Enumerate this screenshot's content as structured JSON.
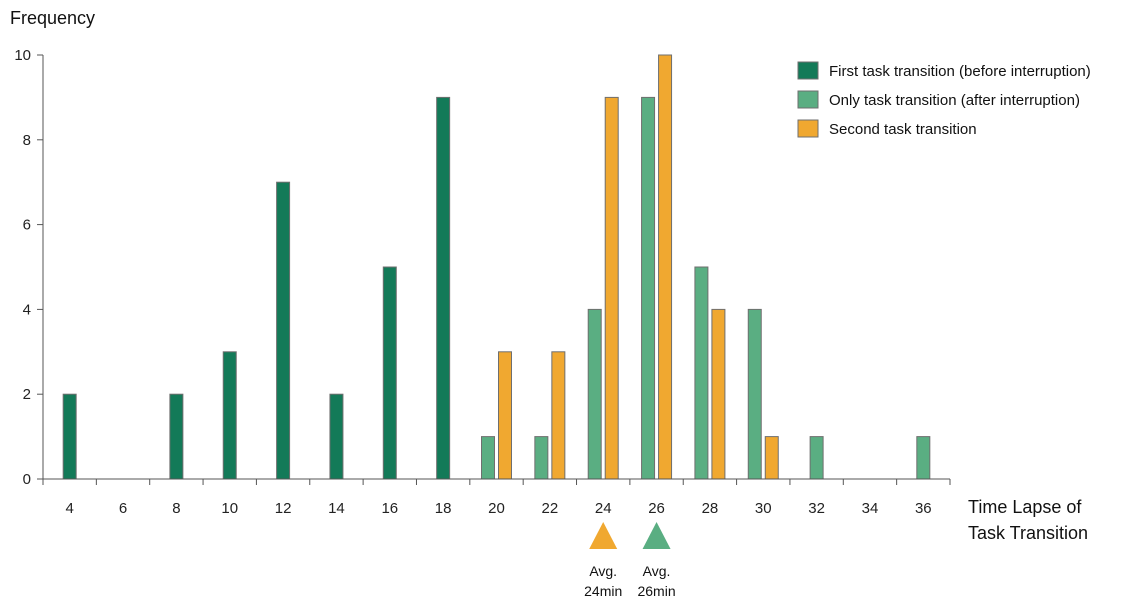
{
  "chart_data": {
    "type": "bar",
    "xlabel": [
      "Time Lapse of",
      "Task Transition"
    ],
    "ylabel": "Frequency",
    "ylim": [
      0,
      10
    ],
    "yticks": [
      0,
      2,
      4,
      6,
      8,
      10
    ],
    "categories": [
      "4",
      "6",
      "8",
      "10",
      "12",
      "14",
      "16",
      "18",
      "20",
      "22",
      "24",
      "26",
      "28",
      "30",
      "32",
      "34",
      "36"
    ],
    "grid": false,
    "legend_position": "top-right",
    "series": [
      {
        "name": "First task transition (before interruption)",
        "color": "#137a58",
        "values": [
          2,
          0,
          2,
          3,
          7,
          2,
          5,
          9,
          0,
          0,
          0,
          0,
          0,
          0,
          0,
          0,
          0
        ]
      },
      {
        "name": "Only task transition (after interruption)",
        "color": "#5aae82",
        "values": [
          0,
          0,
          0,
          0,
          0,
          0,
          0,
          0,
          1,
          1,
          4,
          9,
          5,
          4,
          1,
          0,
          1
        ]
      },
      {
        "name": "Second task transition",
        "color": "#f0a830",
        "values": [
          0,
          0,
          0,
          0,
          0,
          0,
          0,
          0,
          3,
          3,
          9,
          10,
          4,
          1,
          0,
          0,
          0
        ]
      }
    ],
    "annotations": [
      {
        "category": "24",
        "marker": "triangle-up",
        "color": "#f0a830",
        "text": [
          "Avg.",
          "24min"
        ]
      },
      {
        "category": "26",
        "marker": "triangle-up",
        "color": "#5aae82",
        "text": [
          "Avg.",
          "26min"
        ]
      }
    ]
  }
}
